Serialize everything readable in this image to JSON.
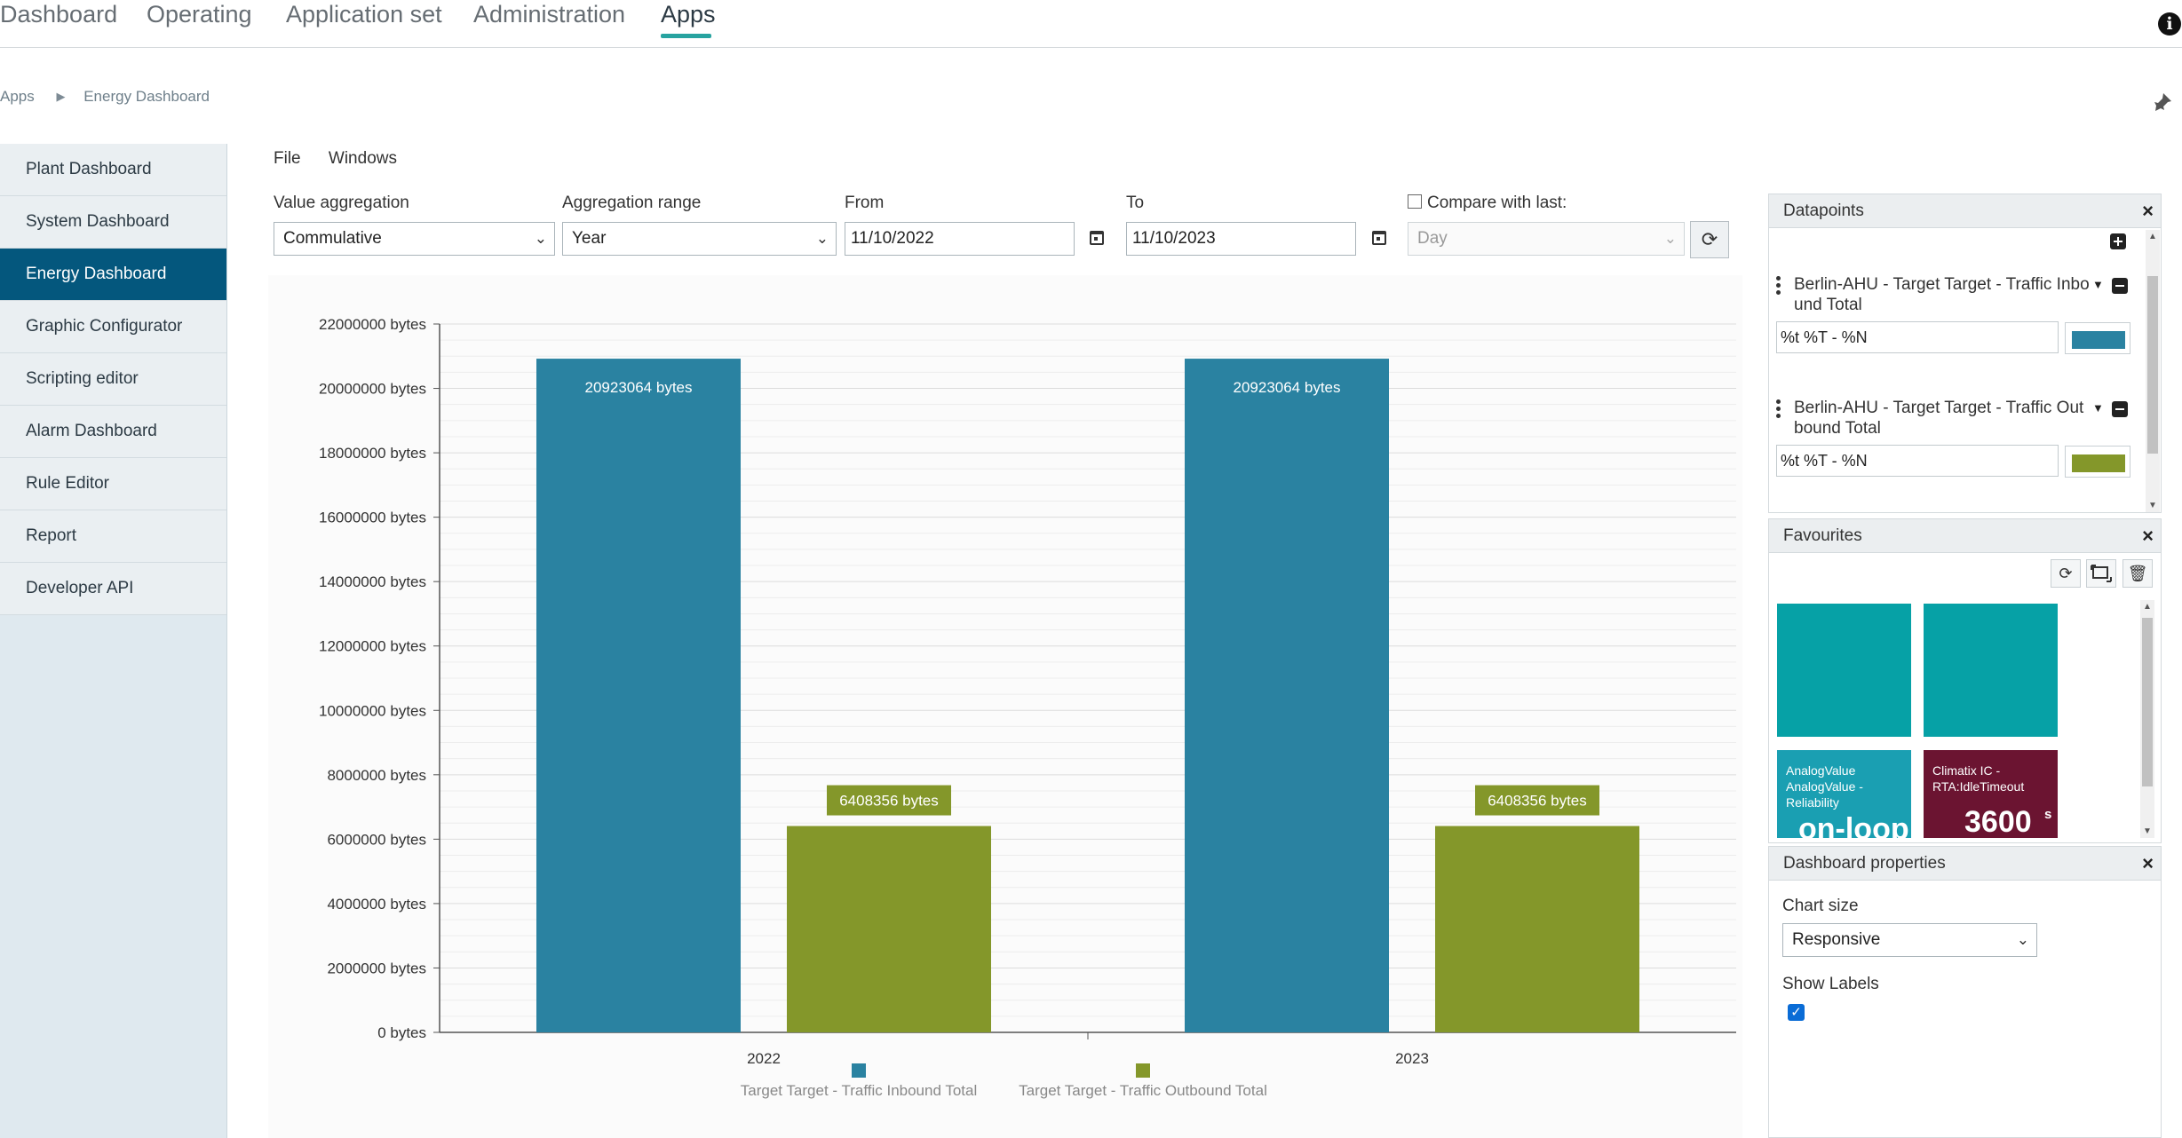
{
  "topnav": {
    "items": [
      "Dashboard",
      "Operating",
      "Application set",
      "Administration",
      "Apps"
    ],
    "active": "Apps"
  },
  "breadcrumb": {
    "root": "Apps",
    "current": "Energy Dashboard"
  },
  "sidebar": {
    "items": [
      "Plant Dashboard",
      "System Dashboard",
      "Energy Dashboard",
      "Graphic Configurator",
      "Scripting editor",
      "Alarm Dashboard",
      "Rule Editor",
      "Report",
      "Developer API"
    ],
    "active": "Energy Dashboard"
  },
  "menu": {
    "file": "File",
    "windows": "Windows"
  },
  "controls": {
    "value_aggregation_label": "Value aggregation",
    "value_aggregation": "Commulative",
    "aggregation_range_label": "Aggregation range",
    "aggregation_range": "Year",
    "from_label": "From",
    "from_value": "11/10/2022",
    "to_label": "To",
    "to_value": "11/10/2023",
    "compare_label": "Compare with last:",
    "compare_checked": false,
    "compare_unit": "Day"
  },
  "chart_data": {
    "type": "bar",
    "categories": [
      "2022",
      "2023"
    ],
    "series": [
      {
        "name": "Target Target - Traffic Inbound Total",
        "values": [
          20923064,
          20923064
        ],
        "color": "#2a82a1",
        "labels": [
          "20923064 bytes",
          "20923064 bytes"
        ]
      },
      {
        "name": "Target Target - Traffic Outbound Total",
        "values": [
          6408356,
          6408356
        ],
        "color": "#84972a",
        "labels": [
          "6408356 bytes",
          "6408356 bytes"
        ]
      }
    ],
    "ylim": [
      0,
      22000000
    ],
    "yticks": [
      "0 bytes",
      "2000000 bytes",
      "4000000 bytes",
      "6000000 bytes",
      "8000000 bytes",
      "10000000 bytes",
      "12000000 bytes",
      "14000000 bytes",
      "16000000 bytes",
      "18000000 bytes",
      "20000000 bytes",
      "22000000 bytes"
    ],
    "grid": true,
    "legend_position": "bottom"
  },
  "datapoints": {
    "title": "Datapoints",
    "items": [
      {
        "name_line1": "Berlin-AHU - Target Target - Traffic Inbo",
        "name_line2": "und Total",
        "format": "%t %T - %N",
        "color": "#2a82a1"
      },
      {
        "name_line1": "Berlin-AHU - Target Target - Traffic Out",
        "name_line2": "bound Total",
        "format": "%t %T - %N",
        "color": "#84972a"
      }
    ]
  },
  "favourites": {
    "title": "Favourites",
    "tiles": [
      {
        "label": "",
        "value": "",
        "color": "#06a1a6"
      },
      {
        "label": "",
        "value": "",
        "color": "#06a1a6"
      },
      {
        "label": "AnalogValue AnalogValue - Reliability",
        "value": "on-loop",
        "color": "#1a9fb2"
      },
      {
        "label": "Climatix IC - RTA:IdleTimeout",
        "value": "3600",
        "unit": "s",
        "color": "#6b1431"
      }
    ]
  },
  "dashboard_properties": {
    "title": "Dashboard properties",
    "chart_size_label": "Chart size",
    "chart_size": "Responsive",
    "show_labels_label": "Show Labels",
    "show_labels": true
  }
}
